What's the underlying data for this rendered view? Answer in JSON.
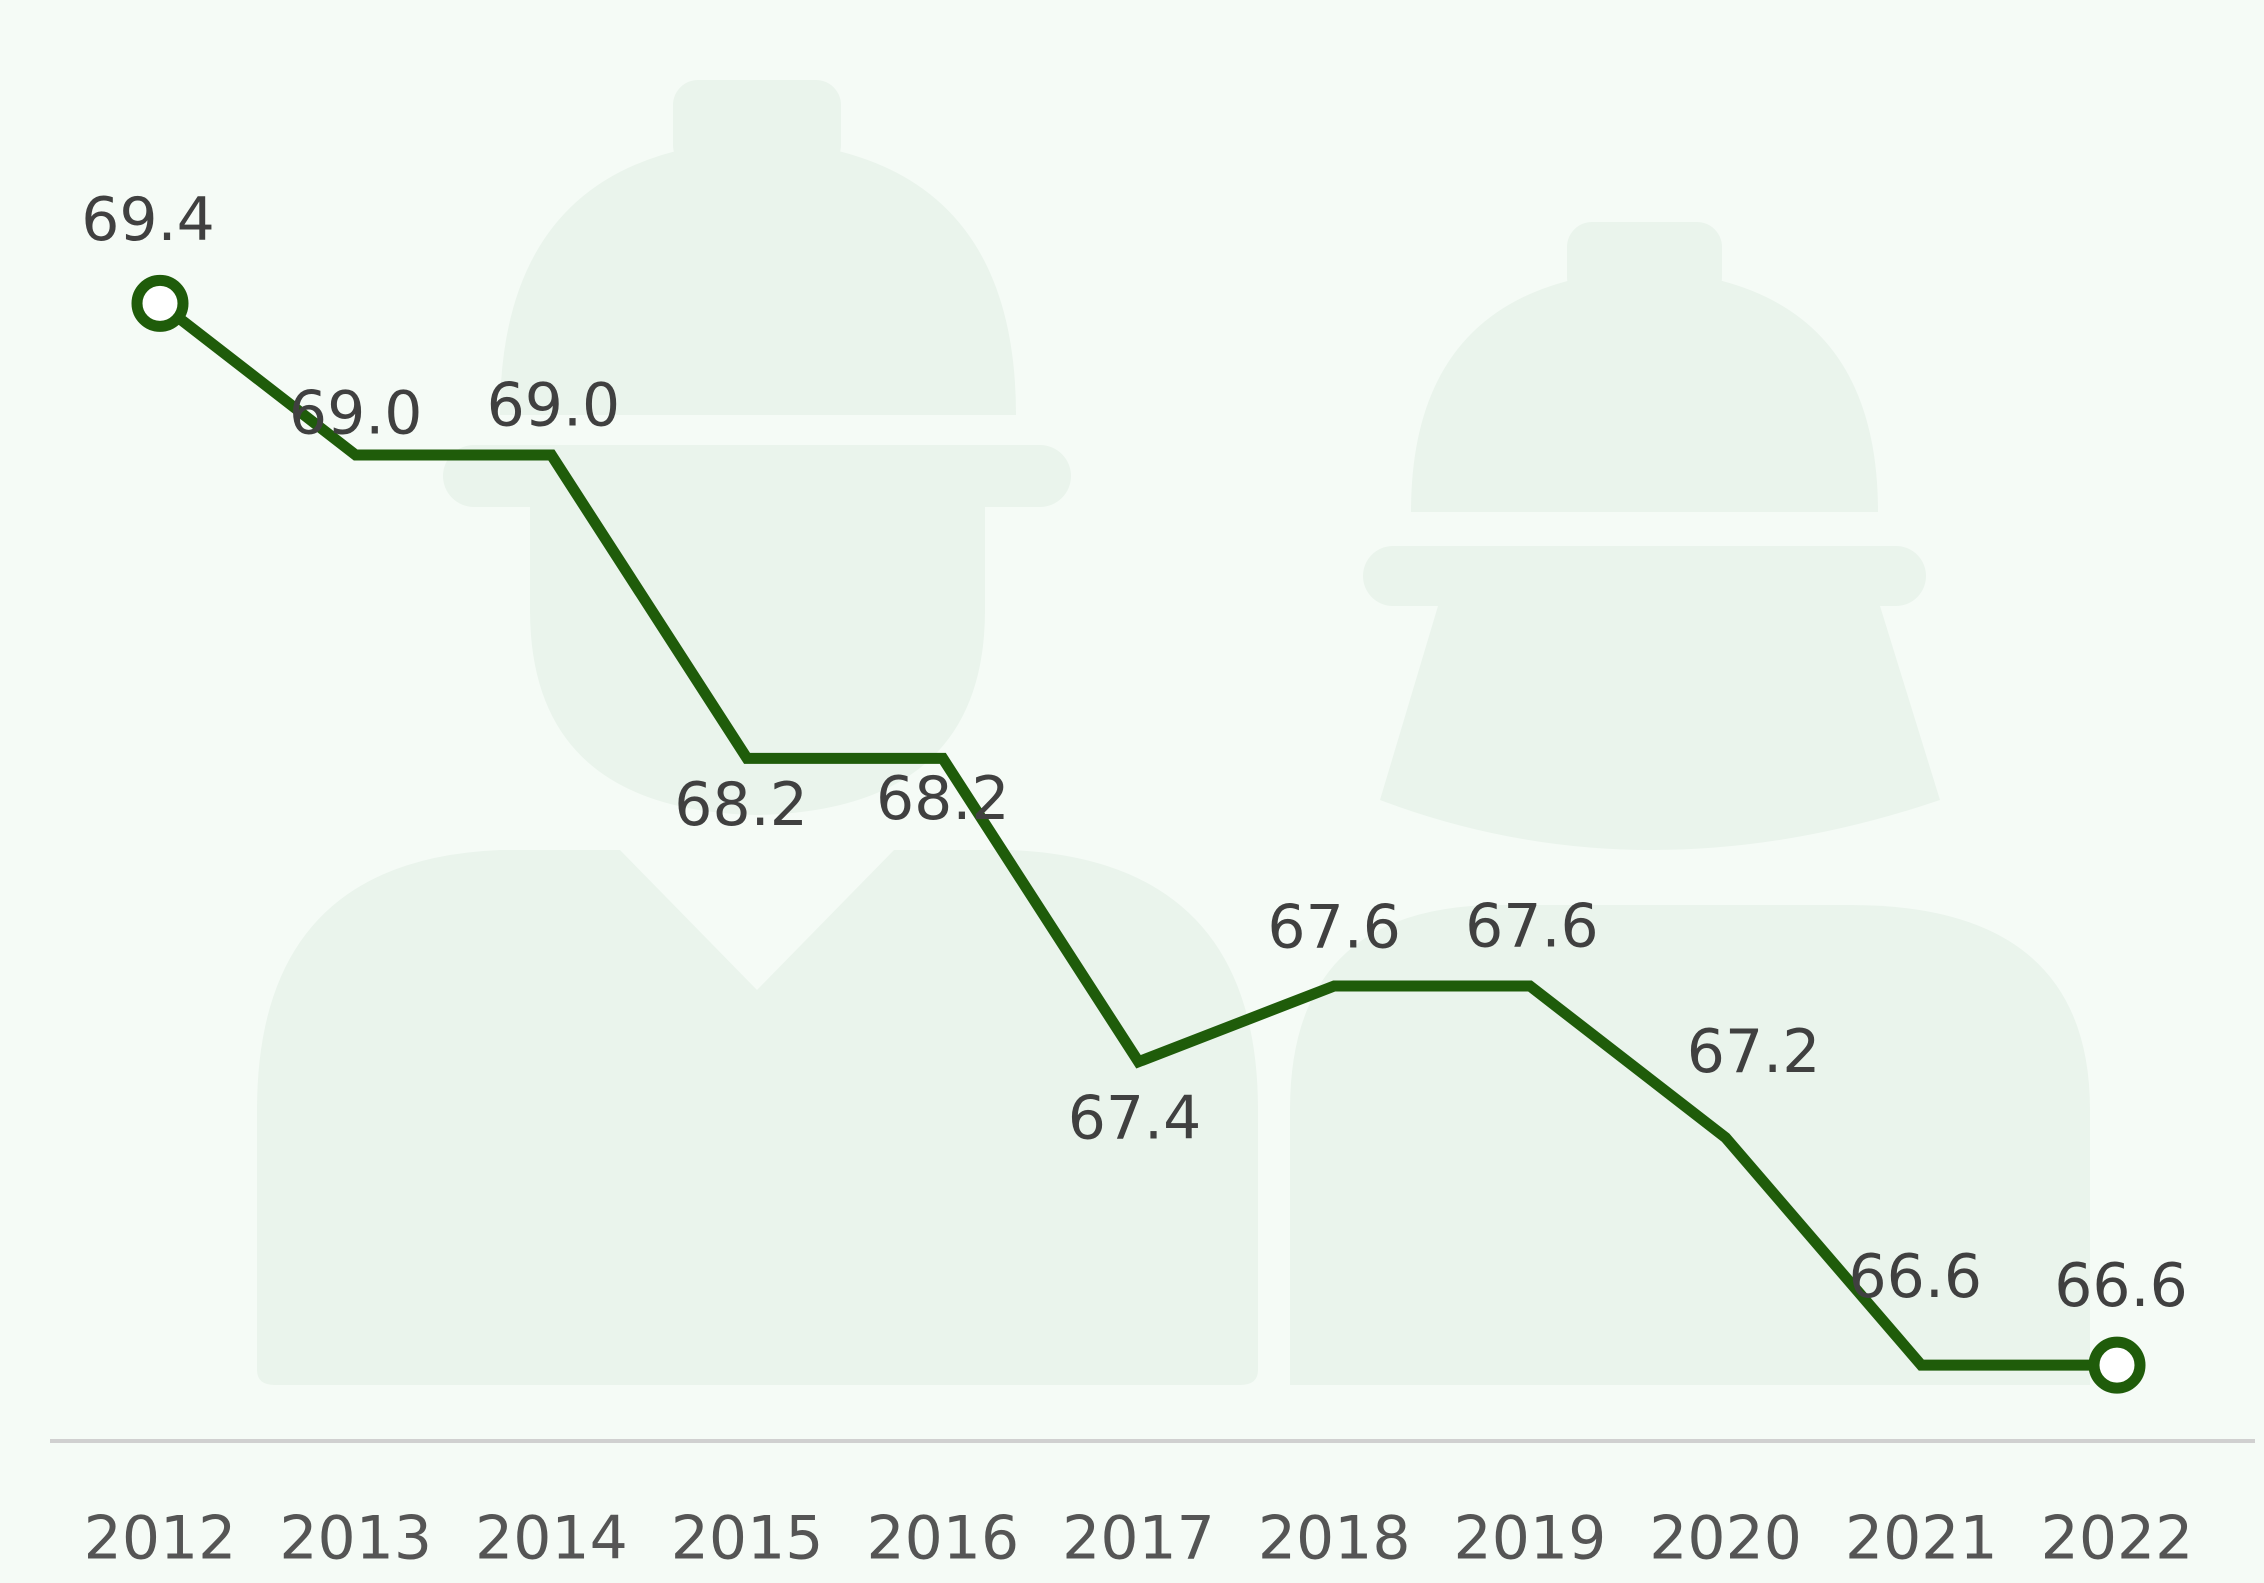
{
  "chart_data": {
    "type": "line",
    "categories": [
      "2012",
      "2013",
      "2014",
      "2015",
      "2016",
      "2017",
      "2018",
      "2019",
      "2020",
      "2021",
      "2022"
    ],
    "values": [
      69.4,
      69.0,
      69.0,
      68.2,
      68.2,
      67.4,
      67.6,
      67.6,
      67.2,
      66.6,
      66.6
    ],
    "value_labels": [
      "69.4",
      "69.0",
      "69.0",
      "68.2",
      "68.2",
      "67.4",
      "67.6",
      "67.6",
      "67.2",
      "66.6",
      "66.6"
    ],
    "color": "#1f5c0a",
    "ylim": [
      66.4,
      70.2
    ],
    "grid": false
  }
}
